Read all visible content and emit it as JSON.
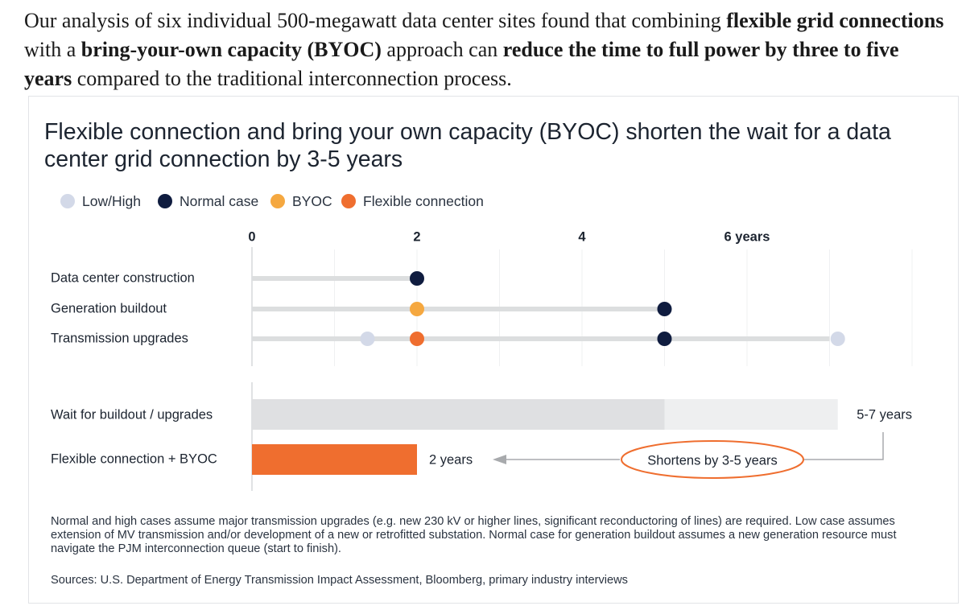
{
  "intro": {
    "segments": [
      {
        "text": "Our analysis of six individual 500-megawatt data center sites found that combining ",
        "bold": false
      },
      {
        "text": "flexible grid connections",
        "bold": true
      },
      {
        "text": " with a ",
        "bold": false
      },
      {
        "text": "bring-your-own capacity (BYOC)",
        "bold": true
      },
      {
        "text": " approach can ",
        "bold": false
      },
      {
        "text": "reduce the time to full power by three to five years",
        "bold": true
      },
      {
        "text": " compared to the traditional interconnection process.",
        "bold": false
      }
    ]
  },
  "chart_data": {
    "type": "dot-range timeline",
    "title": "Flexible connection and bring your own capacity (BYOC) shorten the wait for a data center grid connection by 3-5 years",
    "legend": [
      {
        "label": "Low/High",
        "color": "#d3d9e8"
      },
      {
        "label": "Normal case",
        "color": "#0f1c3f"
      },
      {
        "label": "BYOC",
        "color": "#f5a840"
      },
      {
        "label": "Flexible connection",
        "color": "#ef6e2f"
      }
    ],
    "x_axis": {
      "min": 0,
      "max": 8,
      "tick_values": [
        0,
        2,
        4,
        6
      ],
      "tick_labels": [
        "0",
        "2",
        "4",
        "6 years"
      ],
      "grid": true
    },
    "categories": [
      "Data center construction",
      "Generation buildout",
      "Transmission upgrades"
    ],
    "rows": [
      {
        "label": "Data center construction",
        "range": [
          0,
          2
        ],
        "points": [
          {
            "series": "Normal case",
            "value": 2
          }
        ]
      },
      {
        "label": "Generation buildout",
        "range": [
          0,
          5
        ],
        "points": [
          {
            "series": "BYOC",
            "value": 2
          },
          {
            "series": "Normal case",
            "value": 5
          }
        ]
      },
      {
        "label": "Transmission upgrades",
        "range": [
          0,
          7
        ],
        "points": [
          {
            "series": "Low/High",
            "value": 1.4
          },
          {
            "series": "Flexible connection",
            "value": 2
          },
          {
            "series": "Normal case",
            "value": 5
          },
          {
            "series": "Low/High",
            "value": 7.1
          }
        ]
      }
    ],
    "bars": [
      {
        "label": "Wait for buildout / upgrades",
        "value_low": 5,
        "value_high": 7.1,
        "value_label": "5-7 years",
        "color_main": "#dfe0e2",
        "color_range": "#eeeff0"
      },
      {
        "label": "Flexible connection + BYOC",
        "value": 2,
        "value_label": "2 years",
        "color": "#ef6e2f"
      }
    ],
    "annotation": {
      "text": "Shortens by 3-5 years",
      "stroke": "#ef6e2f"
    }
  },
  "footnote": "Normal and high cases assume major transmission upgrades (e.g. new 230 kV or higher lines, significant reconductoring of lines) are required. Low case assumes extension of MV transmission and/or development of a new or retrofitted substation.  Normal case for generation buildout assumes a new generation resource must navigate the PJM interconnection queue (start to finish).",
  "sources": "Sources: U.S. Department of Energy Transmission Impact Assessment, Bloomberg, primary industry interviews"
}
